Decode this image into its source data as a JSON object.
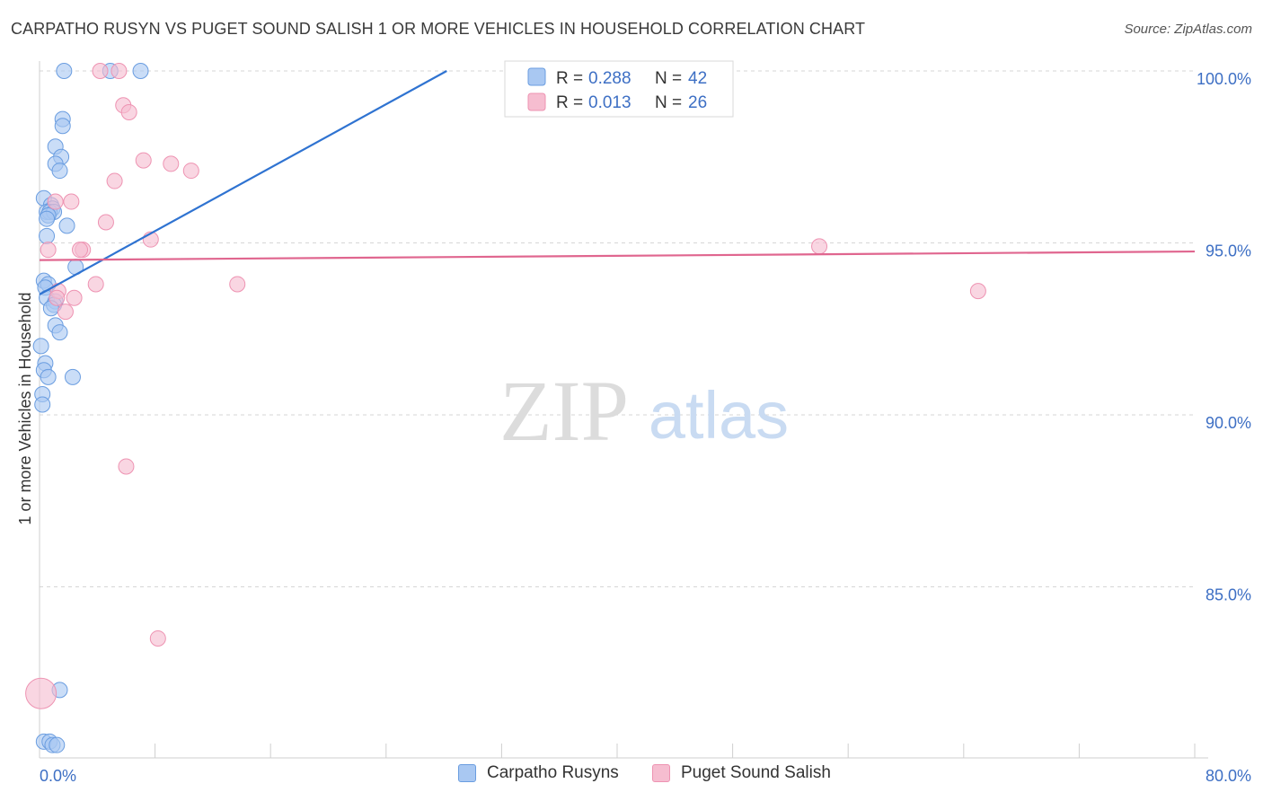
{
  "title": "CARPATHO RUSYN VS PUGET SOUND SALISH 1 OR MORE VEHICLES IN HOUSEHOLD CORRELATION CHART",
  "source": "Source: ZipAtlas.com",
  "watermark": {
    "zip": "ZIP",
    "atlas": "atlas"
  },
  "colors": {
    "blue_fill": "#a9c8f2",
    "blue_stroke": "#6a9de0",
    "blue_line": "#2f73d1",
    "pink_fill": "#f6bdd0",
    "pink_stroke": "#ee93b2",
    "pink_line": "#e0668f",
    "tick_label": "#3d6fc4",
    "grid": "#d6d6d6"
  },
  "chart_data": {
    "type": "scatter",
    "title": "CARPATHO RUSYN VS PUGET SOUND SALISH 1 OR MORE VEHICLES IN HOUSEHOLD CORRELATION CHART",
    "xlabel": "",
    "ylabel": "1 or more Vehicles in Household",
    "xlim": [
      0,
      80
    ],
    "ylim": [
      80.0,
      100.5
    ],
    "x_tick_labels": [
      "0.0%",
      "80.0%"
    ],
    "y_ticks": [
      85,
      90,
      95,
      100
    ],
    "y_tick_labels": [
      "85.0%",
      "90.0%",
      "95.0%",
      "100.0%"
    ],
    "grid": "horizontal dashed",
    "legend_placement": "top-center",
    "series": [
      {
        "name": "Carpatho Rusyns",
        "color": "#a9c8f2",
        "R": "0.288",
        "N": "42",
        "points": [
          [
            1.7,
            100.0
          ],
          [
            4.9,
            100.0
          ],
          [
            7.0,
            100.0
          ],
          [
            37.6,
            100.0
          ],
          [
            1.6,
            98.6
          ],
          [
            1.6,
            98.4
          ],
          [
            1.1,
            97.8
          ],
          [
            1.5,
            97.5
          ],
          [
            1.1,
            97.3
          ],
          [
            1.4,
            97.1
          ],
          [
            0.3,
            96.3
          ],
          [
            0.8,
            96.1
          ],
          [
            0.9,
            96.0
          ],
          [
            0.5,
            95.9
          ],
          [
            0.7,
            95.9
          ],
          [
            1.0,
            95.9
          ],
          [
            0.6,
            95.8
          ],
          [
            0.5,
            95.7
          ],
          [
            1.9,
            95.5
          ],
          [
            0.5,
            95.2
          ],
          [
            2.5,
            94.3
          ],
          [
            0.3,
            93.9
          ],
          [
            0.6,
            93.8
          ],
          [
            0.4,
            93.7
          ],
          [
            0.5,
            93.4
          ],
          [
            1.1,
            93.3
          ],
          [
            1.0,
            93.2
          ],
          [
            0.8,
            93.1
          ],
          [
            1.1,
            92.6
          ],
          [
            1.4,
            92.4
          ],
          [
            0.1,
            92.0
          ],
          [
            0.4,
            91.5
          ],
          [
            0.3,
            91.3
          ],
          [
            0.6,
            91.1
          ],
          [
            2.3,
            91.1
          ],
          [
            0.2,
            90.6
          ],
          [
            0.2,
            90.3
          ],
          [
            1.4,
            82.0
          ],
          [
            0.3,
            80.5
          ],
          [
            0.7,
            80.5
          ],
          [
            0.9,
            80.4
          ],
          [
            1.2,
            80.4
          ]
        ],
        "trend": [
          [
            0.0,
            93.5
          ],
          [
            28.2,
            100.0
          ]
        ]
      },
      {
        "name": "Puget Sound Salish",
        "color": "#f6bdd0",
        "R": "0.013",
        "N": "26",
        "points": [
          [
            4.2,
            100.0
          ],
          [
            5.5,
            100.0
          ],
          [
            5.8,
            99.0
          ],
          [
            6.2,
            98.8
          ],
          [
            7.2,
            97.4
          ],
          [
            9.1,
            97.3
          ],
          [
            10.5,
            97.1
          ],
          [
            5.2,
            96.8
          ],
          [
            1.1,
            96.2
          ],
          [
            2.2,
            96.2
          ],
          [
            4.6,
            95.6
          ],
          [
            7.7,
            95.1
          ],
          [
            3.0,
            94.8
          ],
          [
            2.8,
            94.8
          ],
          [
            54.0,
            94.9
          ],
          [
            0.6,
            94.8
          ],
          [
            3.9,
            93.8
          ],
          [
            13.7,
            93.8
          ],
          [
            65.0,
            93.6
          ],
          [
            1.3,
            93.6
          ],
          [
            1.2,
            93.4
          ],
          [
            2.4,
            93.4
          ],
          [
            1.8,
            93.0
          ],
          [
            6.0,
            88.5
          ],
          [
            8.2,
            83.5
          ],
          [
            0.1,
            81.9
          ]
        ],
        "trend": [
          [
            0.0,
            94.5
          ],
          [
            80.0,
            94.75
          ]
        ]
      }
    ]
  }
}
